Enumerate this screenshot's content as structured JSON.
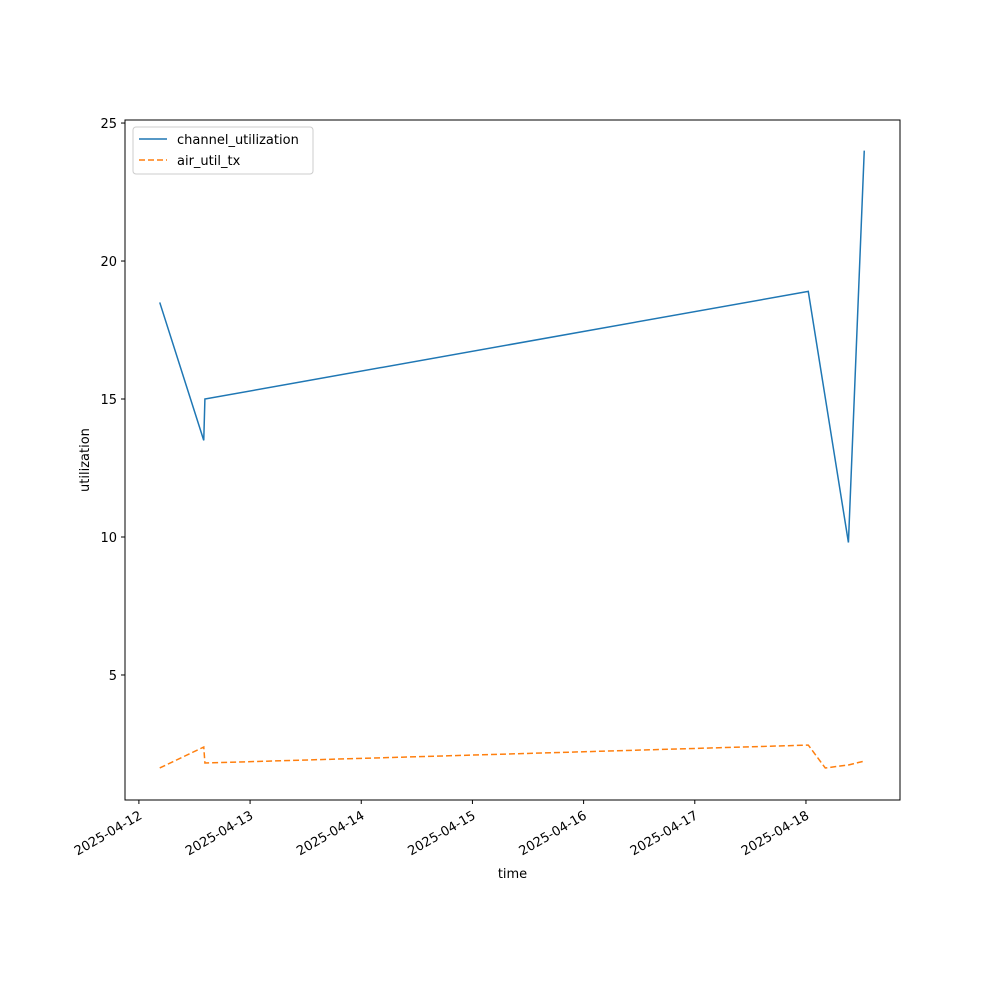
{
  "chart_data": {
    "type": "line",
    "xlabel": "time",
    "ylabel": "utilization",
    "xlim": [
      "2025-04-11T21:00",
      "2025-04-18T20:18"
    ],
    "xticks": [
      "2025-04-12",
      "2025-04-13",
      "2025-04-14",
      "2025-04-15",
      "2025-04-16",
      "2025-04-17",
      "2025-04-18"
    ],
    "ylim": [
      0.47,
      25.11
    ],
    "yticks": [
      5,
      10,
      15,
      20,
      25
    ],
    "grid": false,
    "legend": "upper left",
    "series": [
      {
        "name": "channel_utilization",
        "color": "#1f77b4",
        "linestyle": "solid",
        "x": [
          "2025-04-12T04:30",
          "2025-04-12T14:00",
          "2025-04-12T14:15",
          "2025-04-18T00:30",
          "2025-04-18T09:10",
          "2025-04-18T12:35"
        ],
        "values": [
          18.5,
          13.5,
          15.0,
          18.9,
          9.8,
          24.0
        ]
      },
      {
        "name": "air_util_tx",
        "color": "#ff7f0e",
        "linestyle": "dashed",
        "x": [
          "2025-04-12T04:30",
          "2025-04-12T14:00",
          "2025-04-12T14:15",
          "2025-04-18T00:30",
          "2025-04-18T04:10",
          "2025-04-18T09:10",
          "2025-04-18T12:35"
        ],
        "values": [
          1.63,
          2.39,
          1.81,
          2.46,
          1.63,
          1.74,
          1.88
        ]
      }
    ]
  }
}
